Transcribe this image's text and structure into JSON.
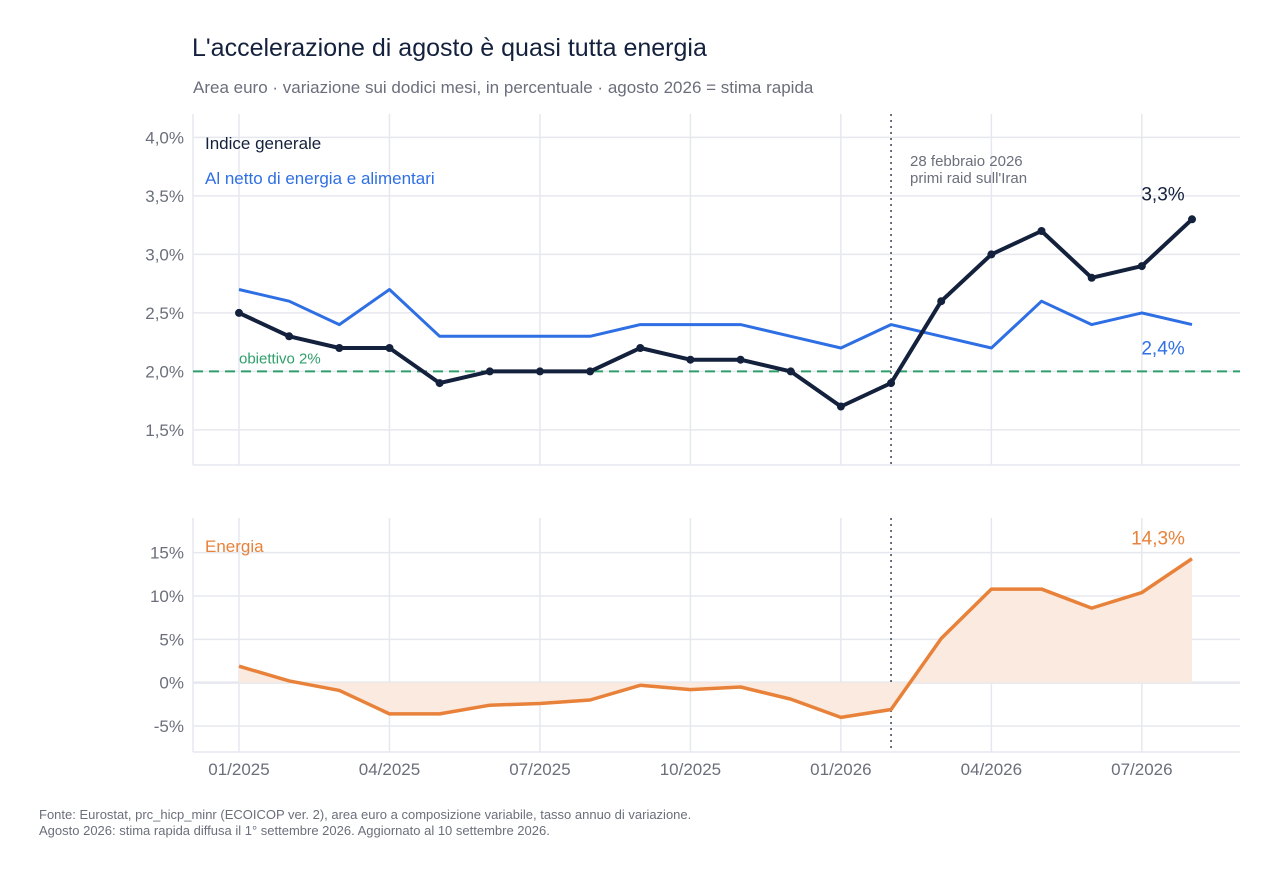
{
  "title": "L'accelerazione di agosto è quasi tutta energia",
  "subtitle": "Area euro · variazione sui dodici mesi, in percentuale · agosto 2026 = stima rapida",
  "source": {
    "line1": "Fonte: Eurostat, prc_hicp_minr (ECOICOP ver. 2), area euro a composizione variabile, tasso annuo di variazione.",
    "line2": "Agosto 2026: stima rapida diffusa il 1° settembre 2026. Aggiornato al 10 settembre 2026."
  },
  "colors": {
    "headline": "#14213d",
    "core": "#2f6fe4",
    "target": "#2e9e6b",
    "energy": "#e8823a",
    "energy_fill": "#fbeadf",
    "grid": "#e6e8ef",
    "axis_text": "#6b6f7b",
    "event": "#5d6170"
  },
  "chart_data": [
    {
      "type": "line",
      "x": [
        "01/2025",
        "02/2025",
        "03/2025",
        "04/2025",
        "05/2025",
        "06/2025",
        "07/2025",
        "08/2025",
        "09/2025",
        "10/2025",
        "11/2025",
        "12/2025",
        "01/2026",
        "02/2026",
        "03/2026",
        "04/2026",
        "05/2026",
        "06/2026",
        "07/2026",
        "08/2026"
      ],
      "x_tick_labels": [
        "01/2025",
        "04/2025",
        "07/2025",
        "10/2025",
        "01/2026",
        "04/2026",
        "07/2026"
      ],
      "ylim": [
        1.2,
        4.2
      ],
      "y_ticks": [
        1.5,
        2.0,
        2.5,
        3.0,
        3.5,
        4.0
      ],
      "y_tick_labels": [
        "1,5%",
        "2,0%",
        "2,5%",
        "3,0%",
        "3,5%",
        "4,0%"
      ],
      "grid": true,
      "series": [
        {
          "name": "Indice generale",
          "values": [
            2.5,
            2.3,
            2.2,
            2.2,
            1.9,
            2.0,
            2.0,
            2.0,
            2.2,
            2.1,
            2.1,
            2.0,
            1.7,
            1.9,
            2.6,
            3.0,
            3.2,
            2.8,
            2.9,
            3.3
          ],
          "markers": true,
          "end_label": "3,3%"
        },
        {
          "name": "Al netto di energia e alimentari",
          "values": [
            2.7,
            2.6,
            2.4,
            2.7,
            2.3,
            2.3,
            2.3,
            2.3,
            2.4,
            2.4,
            2.4,
            2.3,
            2.2,
            2.4,
            2.3,
            2.2,
            2.6,
            2.4,
            2.5,
            2.4
          ],
          "markers": false,
          "end_label": "2,4%"
        }
      ],
      "reference_line": {
        "y": 2.0,
        "label": "obiettivo 2%"
      },
      "event": {
        "x": "02/2026",
        "label_line1": "28 febbraio 2026",
        "label_line2": "primi raid sull'Iran"
      }
    },
    {
      "type": "area",
      "x": [
        "01/2025",
        "02/2025",
        "03/2025",
        "04/2025",
        "05/2025",
        "06/2025",
        "07/2025",
        "08/2025",
        "09/2025",
        "10/2025",
        "11/2025",
        "12/2025",
        "01/2026",
        "02/2026",
        "03/2026",
        "04/2026",
        "05/2026",
        "06/2026",
        "07/2026",
        "08/2026"
      ],
      "x_tick_labels": [
        "01/2025",
        "04/2025",
        "07/2025",
        "10/2025",
        "01/2026",
        "04/2026",
        "07/2026"
      ],
      "ylim": [
        -8,
        19
      ],
      "y_ticks": [
        -5,
        0,
        5,
        10,
        15
      ],
      "y_tick_labels": [
        "-5%",
        "0%",
        "5%",
        "10%",
        "15%"
      ],
      "grid": true,
      "series": [
        {
          "name": "Energia",
          "values": [
            1.9,
            0.2,
            -0.9,
            -3.6,
            -3.6,
            -2.6,
            -2.4,
            -2.0,
            -0.3,
            -0.8,
            -0.5,
            -1.9,
            -4.0,
            -3.1,
            5.1,
            10.8,
            10.8,
            8.6,
            10.4,
            14.3
          ],
          "end_label": "14,3%"
        }
      ]
    }
  ]
}
